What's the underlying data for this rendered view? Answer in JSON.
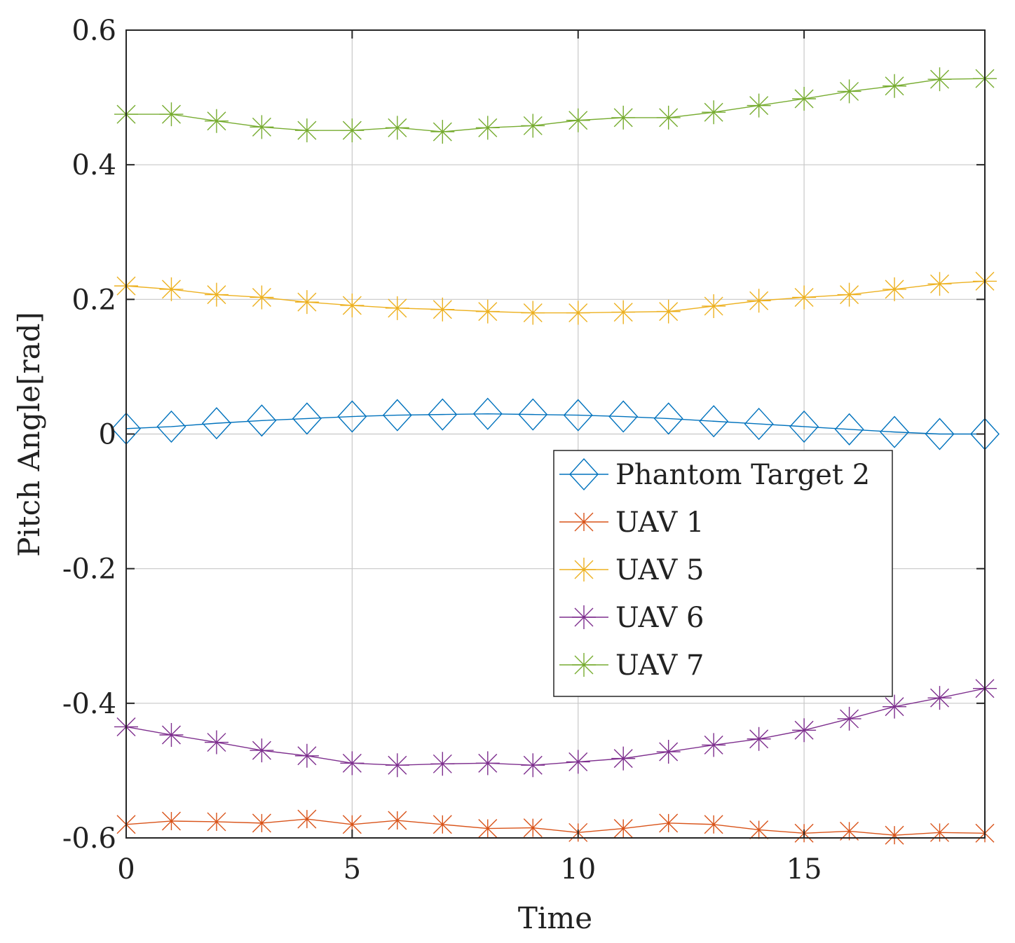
{
  "chart_data": {
    "type": "line",
    "title": "",
    "xlabel": "Time",
    "ylabel": "Pitch Angle[rad]",
    "xlim": [
      0,
      19
    ],
    "ylim": [
      -0.6,
      0.6
    ],
    "xticks": [
      0,
      5,
      10,
      15
    ],
    "xtick_labels": [
      "0",
      "5",
      "10",
      "15"
    ],
    "yticks": [
      -0.6,
      -0.4,
      -0.2,
      0,
      0.2,
      0.4,
      0.6
    ],
    "ytick_labels": [
      "-0.6",
      "-0.4",
      "-0.2",
      "0",
      "0.2",
      "0.4",
      "0.6"
    ],
    "grid": true,
    "legend_position": "center-right",
    "x": [
      0,
      1,
      2,
      3,
      4,
      5,
      6,
      7,
      8,
      9,
      10,
      11,
      12,
      13,
      14,
      15,
      16,
      17,
      18,
      19
    ],
    "series": [
      {
        "name": "Phantom Target 2",
        "color": "#0072BD",
        "marker": "diamond",
        "values": [
          0.008,
          0.011,
          0.016,
          0.02,
          0.023,
          0.026,
          0.028,
          0.029,
          0.03,
          0.029,
          0.028,
          0.026,
          0.023,
          0.019,
          0.015,
          0.011,
          0.007,
          0.003,
          0.0,
          0.0
        ]
      },
      {
        "name": "UAV 1",
        "color": "#D95319",
        "marker": "x",
        "values": [
          -0.58,
          -0.575,
          -0.576,
          -0.578,
          -0.572,
          -0.58,
          -0.574,
          -0.58,
          -0.586,
          -0.585,
          -0.592,
          -0.586,
          -0.578,
          -0.58,
          -0.588,
          -0.593,
          -0.59,
          -0.596,
          -0.592,
          -0.593
        ]
      },
      {
        "name": "UAV 5",
        "color": "#EDB120",
        "marker": "star",
        "values": [
          0.22,
          0.215,
          0.207,
          0.203,
          0.196,
          0.191,
          0.187,
          0.185,
          0.182,
          0.18,
          0.18,
          0.181,
          0.182,
          0.19,
          0.198,
          0.203,
          0.207,
          0.215,
          0.223,
          0.227
        ]
      },
      {
        "name": "UAV 6",
        "color": "#7E2F8E",
        "marker": "star",
        "values": [
          -0.435,
          -0.447,
          -0.458,
          -0.47,
          -0.478,
          -0.489,
          -0.492,
          -0.49,
          -0.489,
          -0.492,
          -0.487,
          -0.482,
          -0.472,
          -0.462,
          -0.453,
          -0.44,
          -0.423,
          -0.405,
          -0.392,
          -0.378
        ]
      },
      {
        "name": "UAV 7",
        "color": "#77AC30",
        "marker": "star",
        "values": [
          0.475,
          0.475,
          0.465,
          0.456,
          0.451,
          0.451,
          0.455,
          0.449,
          0.455,
          0.458,
          0.466,
          0.47,
          0.47,
          0.478,
          0.488,
          0.498,
          0.509,
          0.517,
          0.527,
          0.528
        ]
      }
    ]
  }
}
